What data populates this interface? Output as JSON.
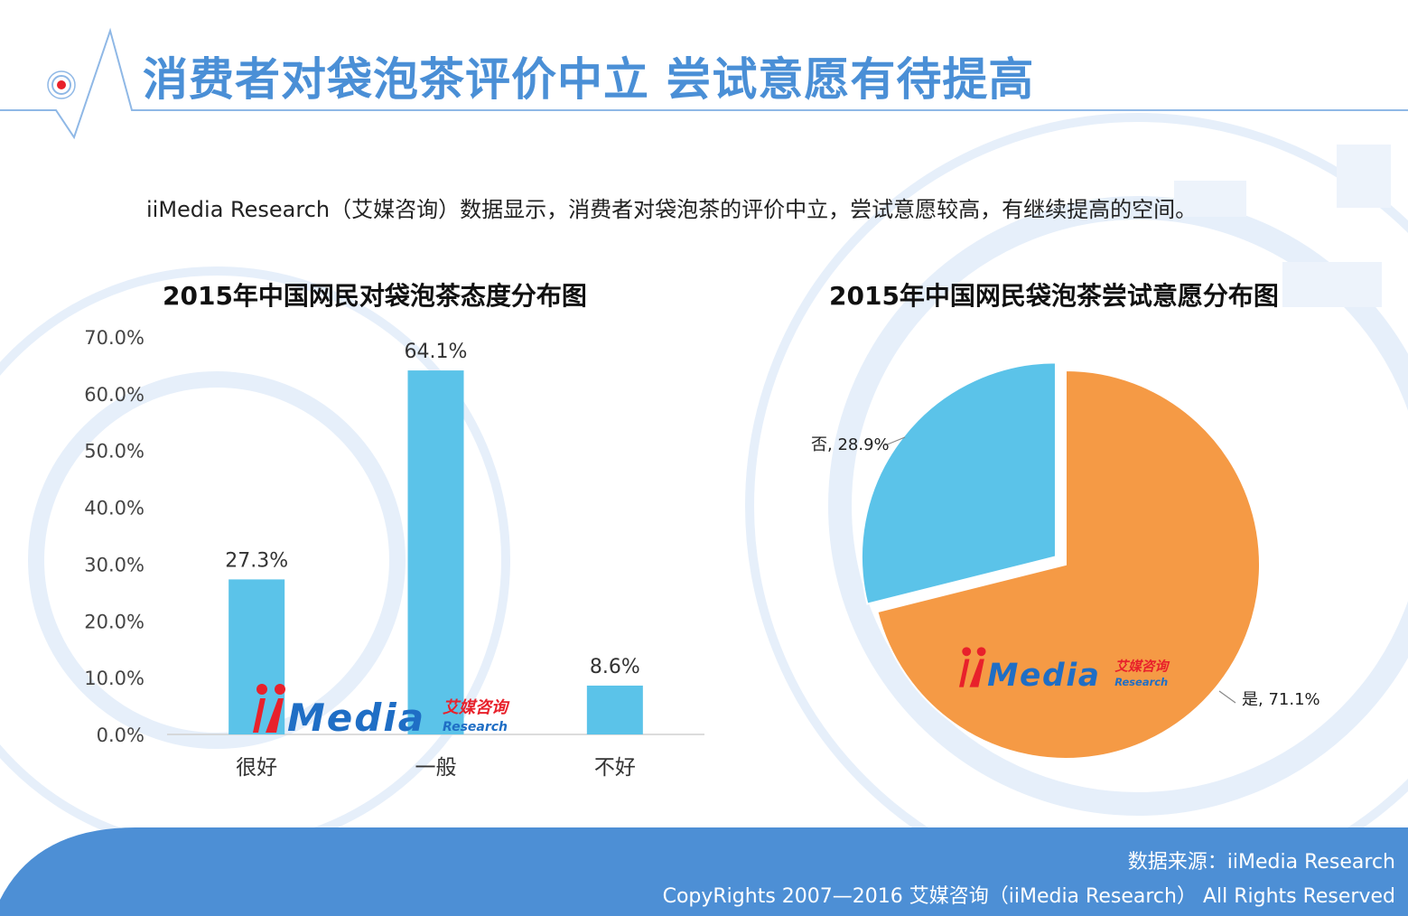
{
  "header": {
    "title": "消费者对袋泡茶评价中立  尝试意愿有待提高"
  },
  "intro": {
    "text": "iiMedia Research（艾媒咨询）数据显示，消费者对袋泡茶的评价中立，尝试意愿较高，有继续提高的空间。"
  },
  "watermark": {
    "logo_text": "iiMedia",
    "logo_cn": "艾媒咨询",
    "logo_en": "Research"
  },
  "colors": {
    "accent_blue": "#4a8fd6",
    "bar_blue": "#5bc3e9",
    "pie_orange": "#f59a45",
    "footer_blue": "#4d8fd5",
    "logo_red": "#e8212b",
    "logo_blue": "#1f6ec5"
  },
  "chart_data": [
    {
      "type": "bar",
      "title": "2015年中国网民对袋泡茶态度分布图",
      "categories": [
        "很好",
        "一般",
        "不好"
      ],
      "values": [
        27.3,
        64.1,
        8.6
      ],
      "value_labels": [
        "27.3%",
        "64.1%",
        "8.6%"
      ],
      "ylim": [
        0,
        70
      ],
      "yticks": [
        "0.0%",
        "10.0%",
        "20.0%",
        "30.0%",
        "40.0%",
        "50.0%",
        "60.0%",
        "70.0%"
      ],
      "grid": false,
      "legend": "none"
    },
    {
      "type": "pie",
      "title": "2015年中国网民袋泡茶尝试意愿分布图",
      "slices": [
        {
          "label": "是",
          "value": 71.1,
          "text": "是, 71.1%",
          "color": "#f59a45"
        },
        {
          "label": "否",
          "value": 28.9,
          "text": "否, 28.9%",
          "color": "#5bc3e9"
        }
      ],
      "legend": "none"
    }
  ],
  "footer": {
    "source": "数据来源：iiMedia Research",
    "copyright": "CopyRights 2007—2016 艾媒咨询（iiMedia Research） All Rights Reserved"
  }
}
